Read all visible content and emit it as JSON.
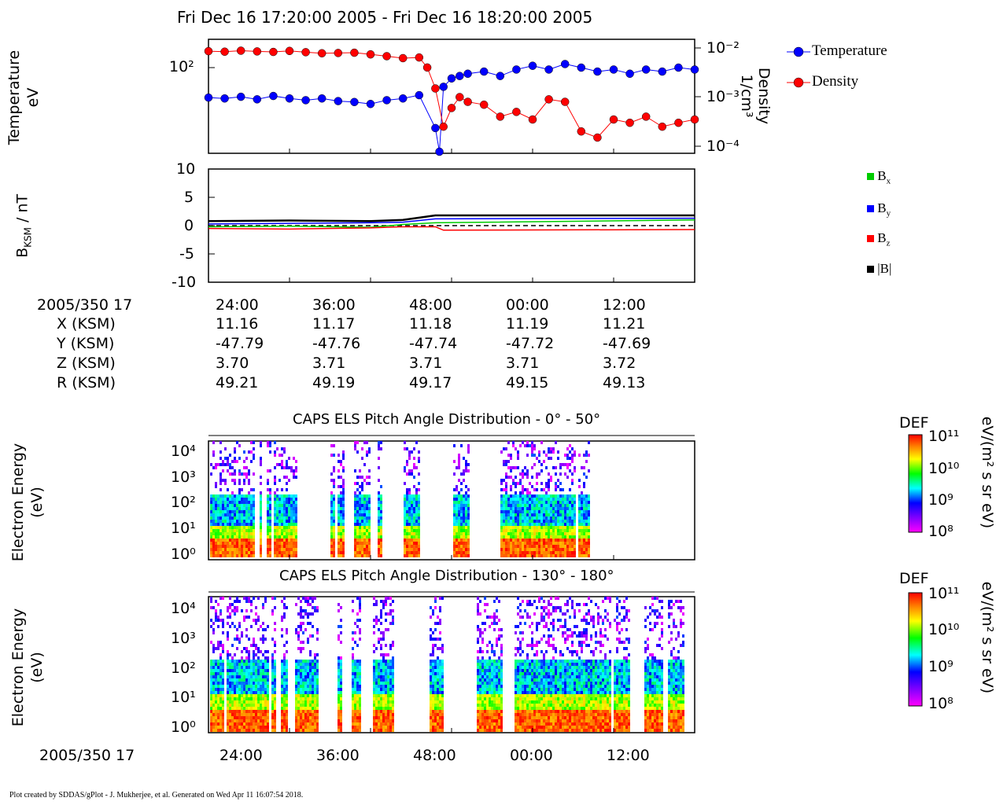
{
  "title": "Fri Dec 16 17:20:00 2005 - Fri Dec 16 18:20:00 2005",
  "footer": "Plot created by SDDAS/gPlot - J. Mukherjee, et al.  Generated on Wed Apr 11 16:07:54 2018.",
  "colors": {
    "temperature": "#0000ff",
    "density": "#ff0000",
    "bx": "#00cc00",
    "by": "#0000ff",
    "bz": "#ff0000",
    "btot": "#000000"
  },
  "ephemeris": {
    "time_label": "2005/350 17",
    "row_labels": [
      "X (KSM)",
      "Y (KSM)",
      "Z (KSM)",
      "R (KSM)"
    ],
    "times": [
      "24:00",
      "36:00",
      "48:00",
      "00:00",
      "12:00"
    ],
    "X": [
      "11.16",
      "11.17",
      "11.18",
      "11.19",
      "11.21"
    ],
    "Y": [
      "-47.79",
      "-47.76",
      "-47.74",
      "-47.72",
      "-47.69"
    ],
    "Z": [
      "3.70",
      "3.71",
      "3.71",
      "3.71",
      "3.72"
    ],
    "R": [
      "49.21",
      "49.19",
      "49.17",
      "49.15",
      "49.13"
    ]
  },
  "panel_bottom": {
    "time_label": "2005/350 17",
    "ticks": [
      "24:00",
      "36:00",
      "48:00",
      "00:00",
      "12:00"
    ]
  },
  "chart_data": [
    {
      "type": "scatter",
      "name": "temperature-density",
      "ylabel": "Temperature\neV",
      "ylabel_line1": "Temperature",
      "ylabel_line2": "eV",
      "y2label_line1": "Density",
      "y2label_line2": "1/cm³",
      "y_ticks": [
        "10²"
      ],
      "y2_ticks": [
        "10⁻²",
        "10⁻³",
        "10⁻⁴"
      ],
      "y_scale": "log",
      "x_range_minutes": [
        20,
        80
      ],
      "legend": [
        "Temperature",
        "Density"
      ],
      "legend_position": "right",
      "series": [
        {
          "name": "Temperature",
          "color": "#0000ff",
          "x": [
            20,
            22,
            24,
            26,
            28,
            30,
            32,
            34,
            36,
            38,
            40,
            42,
            44,
            46,
            48,
            48.5,
            49,
            50,
            51,
            52,
            54,
            56,
            58,
            60,
            62,
            64,
            66,
            68,
            70,
            72,
            74,
            76,
            78,
            80
          ],
          "y": [
            45,
            44,
            46,
            43,
            47,
            44,
            42,
            44,
            41,
            40,
            38,
            42,
            44,
            48,
            20,
            10,
            60,
            75,
            80,
            85,
            90,
            80,
            95,
            105,
            95,
            110,
            100,
            90,
            95,
            85,
            95,
            90,
            100,
            95
          ]
        },
        {
          "name": "Density",
          "color": "#ff0000",
          "x": [
            20,
            22,
            24,
            26,
            28,
            30,
            32,
            34,
            36,
            38,
            40,
            42,
            44,
            46,
            47,
            48,
            49,
            50,
            51,
            52,
            54,
            56,
            58,
            60,
            62,
            64,
            66,
            68,
            70,
            72,
            74,
            76,
            78,
            80
          ],
          "y": [
            0.0086,
            0.0084,
            0.0088,
            0.0085,
            0.0083,
            0.0087,
            0.0082,
            0.0078,
            0.0079,
            0.008,
            0.0074,
            0.0068,
            0.0062,
            0.0064,
            0.004,
            0.0015,
            0.00025,
            0.0006,
            0.001,
            0.0008,
            0.0007,
            0.0004,
            0.0005,
            0.00035,
            0.0009,
            0.0008,
            0.0002,
            0.00015,
            0.00035,
            0.0003,
            0.0004,
            0.00025,
            0.0003,
            0.00035
          ]
        }
      ]
    },
    {
      "type": "line",
      "name": "magnetic-field",
      "ylabel": "B_KSM / nT",
      "ylabel_main": "B",
      "ylabel_sub": "KSM",
      "ylabel_rest": " / nT",
      "ylim": [
        -10,
        10
      ],
      "y_ticks": [
        "10",
        "5",
        "0",
        "-5",
        "-10"
      ],
      "x_range_minutes": [
        20,
        80
      ],
      "legend_position": "right",
      "series": [
        {
          "name": "B",
          "sub": "x",
          "color": "#00cc00",
          "x": [
            20,
            30,
            40,
            44,
            48,
            80
          ],
          "y": [
            -0.2,
            -0.1,
            -0.3,
            0.2,
            0.5,
            1.0
          ]
        },
        {
          "name": "B",
          "sub": "y",
          "color": "#0000ff",
          "x": [
            20,
            30,
            40,
            44,
            48,
            80
          ],
          "y": [
            0.3,
            0.4,
            0.5,
            0.6,
            1.2,
            1.3
          ]
        },
        {
          "name": "B",
          "sub": "z",
          "color": "#ff0000",
          "x": [
            20,
            30,
            40,
            44,
            48,
            49,
            80
          ],
          "y": [
            -0.5,
            -0.6,
            -0.4,
            -0.2,
            -0.2,
            -0.8,
            -0.7
          ]
        },
        {
          "name": "|B|",
          "sub": "",
          "color": "#000000",
          "x": [
            20,
            30,
            40,
            44,
            48,
            80
          ],
          "y": [
            0.8,
            0.9,
            0.8,
            1.0,
            1.8,
            1.8
          ]
        }
      ]
    },
    {
      "type": "heatmap",
      "name": "els-0-50",
      "title": "CAPS ELS Pitch Angle Distribution - 0° - 50°",
      "ylabel_line1": "Electron Energy",
      "ylabel_line2": "(eV)",
      "y_ticks": [
        "10⁴",
        "10³",
        "10²",
        "10¹",
        "10⁰"
      ],
      "colorbar_title": "DEF",
      "colorbar_ticks": [
        "10¹¹",
        "10¹⁰",
        "10⁹",
        "10⁸"
      ],
      "colorbar_unit": "eV/(m² s sr eV)"
    },
    {
      "type": "heatmap",
      "name": "els-130-180",
      "title": "CAPS ELS Pitch Angle Distribution - 130° - 180°",
      "ylabel_line1": "Electron Energy",
      "ylabel_line2": "(eV)",
      "y_ticks": [
        "10⁴",
        "10³",
        "10²",
        "10¹",
        "10⁰"
      ],
      "colorbar_title": "DEF",
      "colorbar_ticks": [
        "10¹¹",
        "10¹⁰",
        "10⁹",
        "10⁸"
      ],
      "colorbar_unit": "eV/(m² s sr eV)"
    }
  ]
}
